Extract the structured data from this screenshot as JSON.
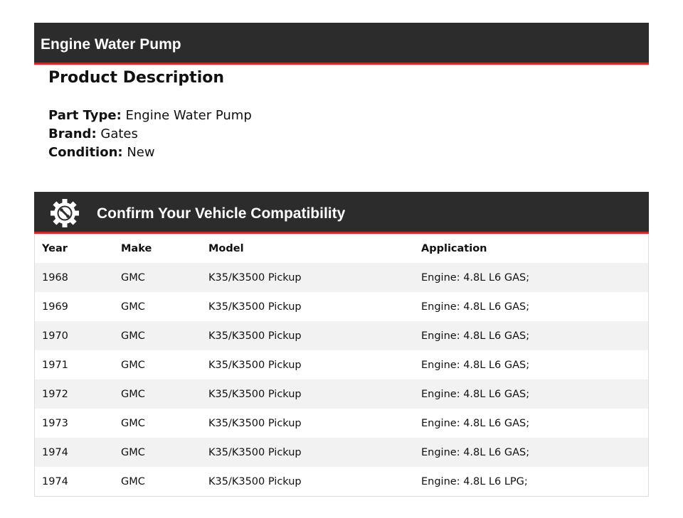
{
  "header": {
    "title": "Engine Water Pump"
  },
  "description": {
    "title": "Product Description",
    "fields": [
      {
        "label": "Part Type:",
        "value": "Engine Water Pump"
      },
      {
        "label": "Brand:",
        "value": "Gates"
      },
      {
        "label": "Condition:",
        "value": "New"
      }
    ]
  },
  "compat": {
    "title": "Confirm Your Vehicle Compatibility",
    "icon": "gear-wrench-icon",
    "columns": [
      "Year",
      "Make",
      "Model",
      "Application"
    ],
    "rows": [
      [
        "1968",
        "GMC",
        "K35/K3500 Pickup",
        "Engine: 4.8L L6 GAS;"
      ],
      [
        "1969",
        "GMC",
        "K35/K3500 Pickup",
        "Engine: 4.8L L6 GAS;"
      ],
      [
        "1970",
        "GMC",
        "K35/K3500 Pickup",
        "Engine: 4.8L L6 GAS;"
      ],
      [
        "1971",
        "GMC",
        "K35/K3500 Pickup",
        "Engine: 4.8L L6 GAS;"
      ],
      [
        "1972",
        "GMC",
        "K35/K3500 Pickup",
        "Engine: 4.8L L6 GAS;"
      ],
      [
        "1973",
        "GMC",
        "K35/K3500 Pickup",
        "Engine: 4.8L L6 GAS;"
      ],
      [
        "1974",
        "GMC",
        "K35/K3500 Pickup",
        "Engine: 4.8L L6 GAS;"
      ],
      [
        "1974",
        "GMC",
        "K35/K3500 Pickup",
        "Engine: 4.8L L6 LPG;"
      ]
    ]
  },
  "colors": {
    "bar": "#2d2c2d",
    "accent": "#d9232b",
    "stripe": "#f2f2f2"
  }
}
